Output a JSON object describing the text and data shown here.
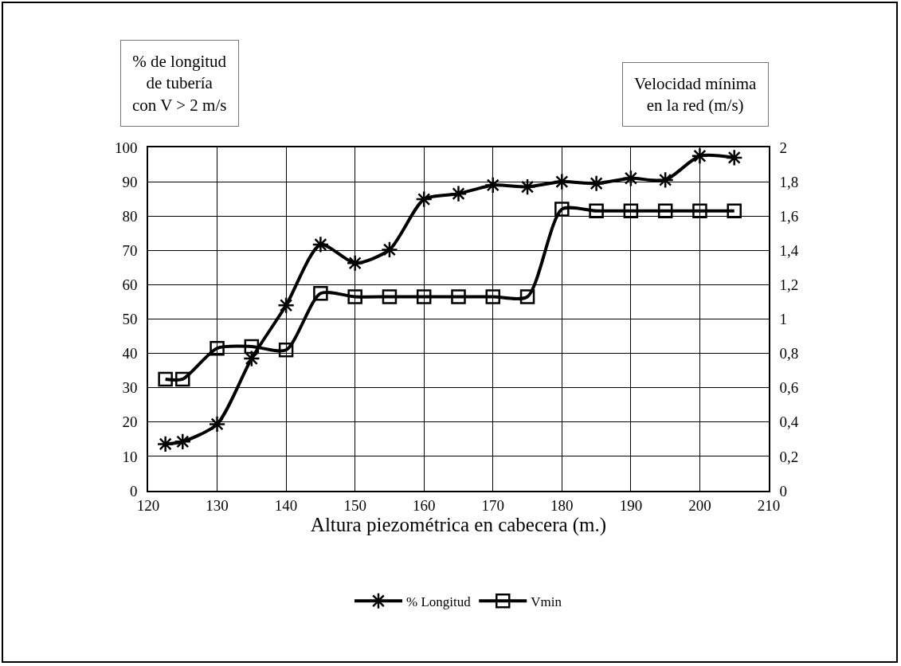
{
  "chart_data": {
    "type": "line",
    "xlabel": "Altura piezométrica en cabecera (m.)",
    "ylabel": "% de longitud\nde tubería\ncon V > 2 m/s",
    "y2label": "Velocidad mínima\nen la red (m/s)",
    "x": [
      122.5,
      125,
      130,
      135,
      140,
      145,
      150,
      155,
      160,
      165,
      170,
      175,
      180,
      185,
      190,
      195,
      200,
      205
    ],
    "series": [
      {
        "name": "% Longitud",
        "color": "#000000",
        "marker": "cross",
        "values": [
          13.6,
          14.3,
          19.4,
          38.5,
          54,
          71.7,
          66.3,
          70.2,
          84.9,
          86.5,
          89,
          88.5,
          90,
          89.5,
          91,
          90.5,
          97.5,
          97
        ]
      },
      {
        "name": "Vmin",
        "color": "#000000",
        "marker": "square",
        "axis": "y2",
        "values": [
          0.65,
          0.65,
          0.83,
          0.84,
          0.82,
          1.15,
          1.13,
          1.13,
          1.13,
          1.13,
          1.13,
          1.13,
          1.64,
          1.63,
          1.63,
          1.63,
          1.63,
          1.63
        ]
      }
    ],
    "xlim": [
      120,
      210
    ],
    "xticks": [
      120,
      130,
      140,
      150,
      160,
      170,
      180,
      190,
      200,
      210
    ],
    "ylim": [
      0,
      100
    ],
    "yticks": [
      0,
      10,
      20,
      30,
      40,
      50,
      60,
      70,
      80,
      90,
      100
    ],
    "y2lim": [
      0,
      2
    ],
    "y2ticks": [
      0,
      {
        "value": 0.2,
        "label": "0,2"
      },
      {
        "value": 0.4,
        "label": "0,4"
      },
      {
        "value": 0.6,
        "label": "0,6"
      },
      {
        "value": 0.8,
        "label": "0,8"
      },
      1,
      {
        "value": 1.2,
        "label": "1,2"
      },
      {
        "value": 1.4,
        "label": "1,4"
      },
      {
        "value": 1.6,
        "label": "1,6"
      },
      {
        "value": 1.8,
        "label": "1,8"
      },
      2
    ],
    "grid": true,
    "legend": "bottom",
    "line_style": "solid"
  }
}
